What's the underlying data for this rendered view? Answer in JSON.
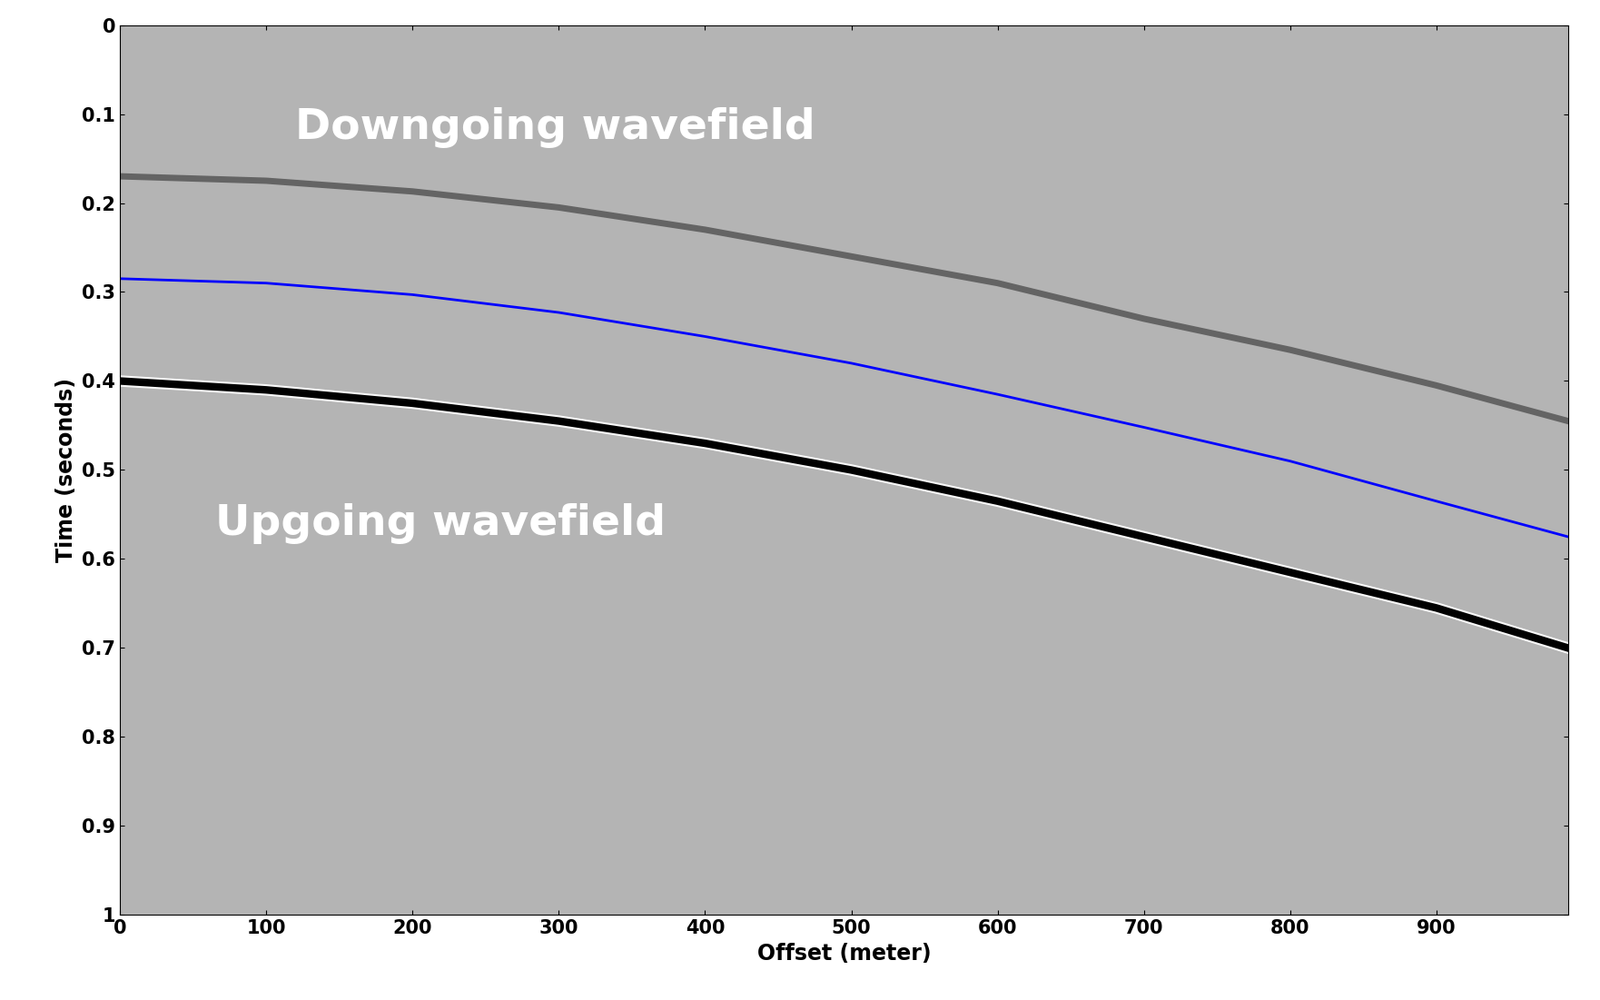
{
  "chart_data": {
    "type": "line",
    "xlabel": "Offset (meter)",
    "ylabel": "Time (seconds)",
    "x": [
      0,
      100,
      200,
      300,
      400,
      500,
      600,
      700,
      800,
      900,
      990
    ],
    "series": [
      {
        "color": "#505050",
        "values": [
          0.17,
          0.175,
          0.187,
          0.205,
          0.23,
          0.26,
          0.29,
          0.33,
          0.365,
          0.405,
          0.445
        ]
      },
      {
        "color": "#0000ff",
        "values": [
          0.285,
          0.29,
          0.303,
          0.323,
          0.35,
          0.38,
          0.415,
          0.452,
          0.49,
          0.535,
          0.575
        ]
      },
      {
        "color": "#000000",
        "values": [
          0.4,
          0.41,
          0.425,
          0.445,
          0.47,
          0.5,
          0.535,
          0.575,
          0.615,
          0.655,
          0.7
        ]
      }
    ],
    "annotations": [
      {
        "text": "Downgoing wavefield",
        "x": 120,
        "y": 0.115
      },
      {
        "text": "Upgoing wavefield",
        "x": 65,
        "y": 0.56
      }
    ],
    "xlim": [
      0,
      990
    ],
    "ylim": [
      1,
      0
    ],
    "xticks": [
      0,
      100,
      200,
      300,
      400,
      500,
      600,
      700,
      800,
      900
    ],
    "yticks": [
      0,
      0.1,
      0.2,
      0.3,
      0.4,
      0.5,
      0.6,
      0.7,
      0.8,
      0.9,
      1
    ],
    "grid": false
  }
}
